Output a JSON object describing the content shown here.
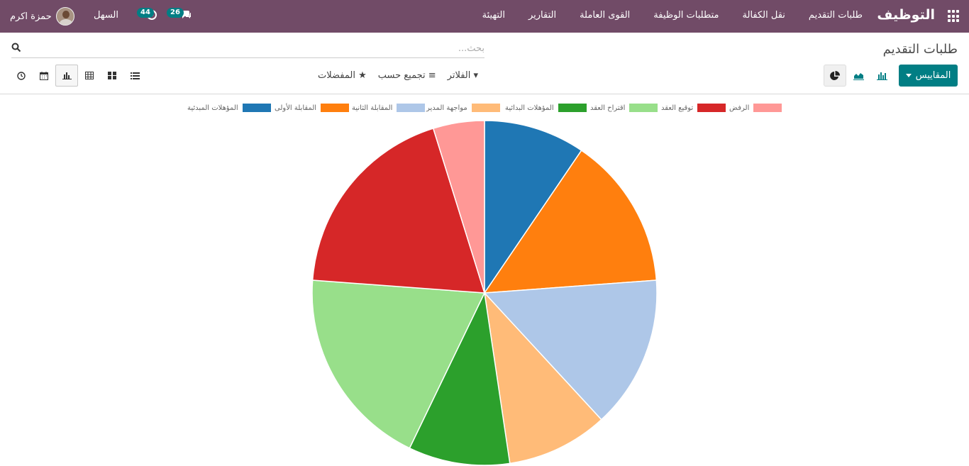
{
  "topbar": {
    "brand": "التوظيف",
    "menu": [
      "طلبات التقديم",
      "نقل الكفالة",
      "متطلبات الوظيفة",
      "القوى العاملة",
      "التقارير",
      "التهيئة"
    ],
    "company": "السهل",
    "user_name": "حمزة اكرم",
    "messages_count": "26",
    "activities_count": "44"
  },
  "page": {
    "title": "طلبات التقديم",
    "search_placeholder": "بحث..."
  },
  "toolbar": {
    "measures_label": "المقاييس",
    "filters_label": "الفلاتر",
    "group_by_label": "تجميع حسب",
    "favorites_label": "المفضلات"
  },
  "colors": {
    "topbar": "#714b67",
    "primary": "#017e84"
  },
  "chart_data": {
    "type": "pie",
    "title": "",
    "series": [
      {
        "name": "المؤهلات المبدئية",
        "value": 9.5,
        "color": "#1f77b4"
      },
      {
        "name": "المقابلة الأولى",
        "value": 14.3,
        "color": "#ff7f0e"
      },
      {
        "name": "المقابلة الثانية",
        "value": 14.3,
        "color": "#aec7e8"
      },
      {
        "name": "مواجهة المدير",
        "value": 9.5,
        "color": "#ffbb78"
      },
      {
        "name": "المؤهلات البدائية",
        "value": 9.5,
        "color": "#2ca02c"
      },
      {
        "name": "اقتراح العقد",
        "value": 19.0,
        "color": "#98df8a"
      },
      {
        "name": "توقيع العقد",
        "value": 19.0,
        "color": "#d62728"
      },
      {
        "name": "الرفض",
        "value": 4.8,
        "color": "#ff9896"
      }
    ],
    "legend_position": "top"
  }
}
